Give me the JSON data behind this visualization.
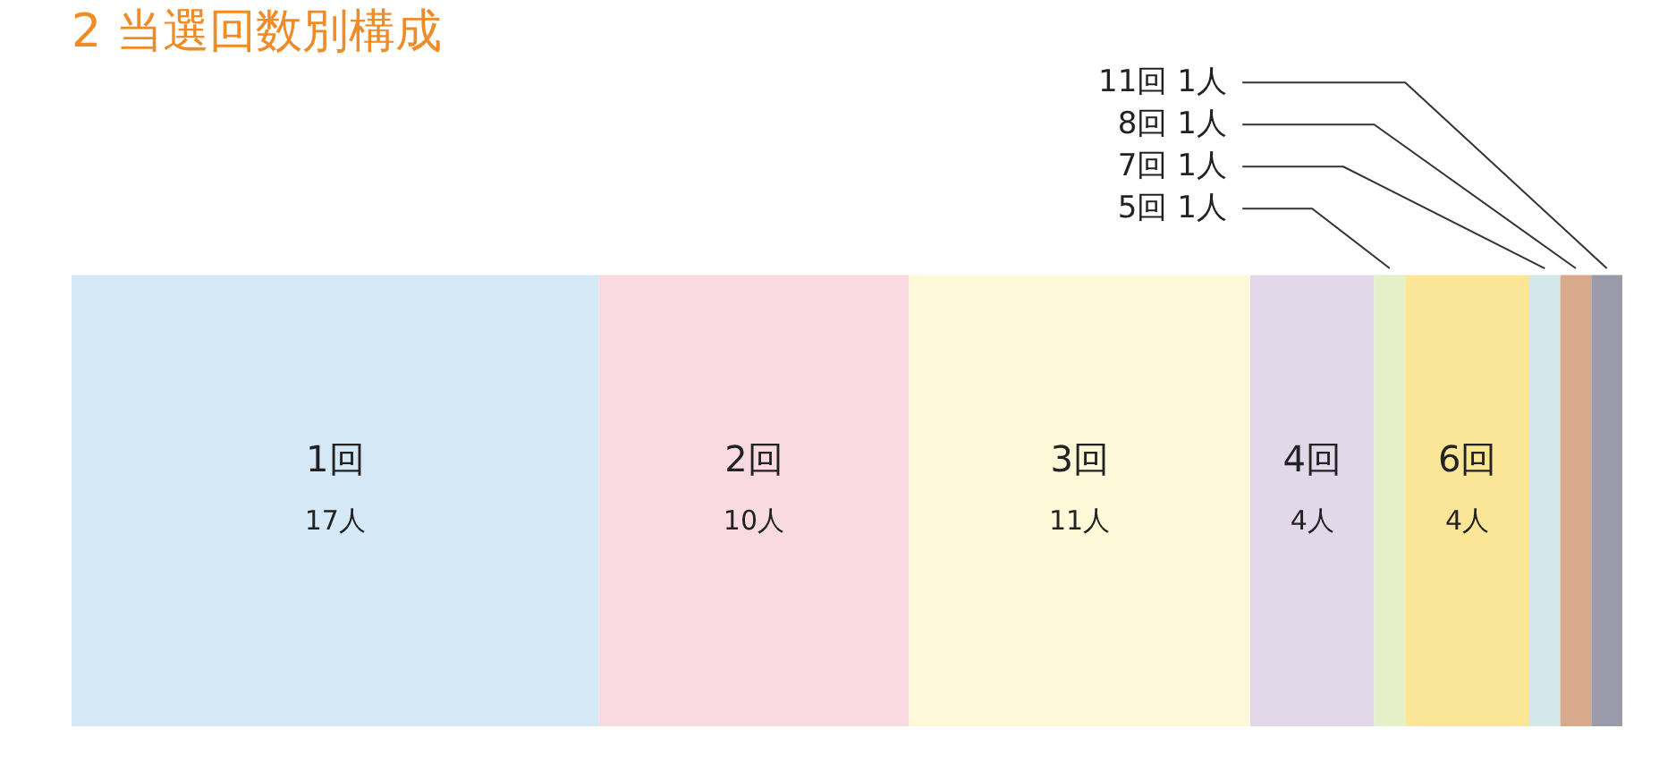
{
  "chart_data": {
    "type": "bar",
    "title": "2 当選回数別構成",
    "orientation": "horizontal",
    "stacked": true,
    "categories": [
      null
    ],
    "series": [
      {
        "name": "1回",
        "color": "#d4e8f5",
        "values": [
          17
        ],
        "value_labels": [
          "17人"
        ]
      },
      {
        "name": "2回",
        "color": "#f9d9e2",
        "values": [
          10
        ],
        "value_labels": [
          "10人"
        ]
      },
      {
        "name": "3回",
        "color": "#fdf8d8",
        "values": [
          11
        ],
        "value_labels": [
          "11人"
        ]
      },
      {
        "name": "4回",
        "color": "#e2d8ea",
        "values": [
          4
        ],
        "value_labels": [
          "4人"
        ]
      },
      {
        "name": "5回",
        "color": "#e6f0c8",
        "values": [
          1
        ],
        "value_labels": [
          "1人"
        ]
      },
      {
        "name": "6回",
        "color": "#fbe596",
        "values": [
          4
        ],
        "value_labels": [
          "4人"
        ]
      },
      {
        "name": "7回",
        "color": "#d4e8ec",
        "values": [
          1
        ],
        "value_labels": [
          "1人"
        ]
      },
      {
        "name": "8回",
        "color": "#d8a98a",
        "values": [
          1
        ],
        "value_labels": [
          "1人"
        ]
      },
      {
        "name": "11回",
        "color": "#9a9aaa",
        "values": [
          1
        ],
        "value_labels": [
          "1人"
        ]
      }
    ]
  }
}
